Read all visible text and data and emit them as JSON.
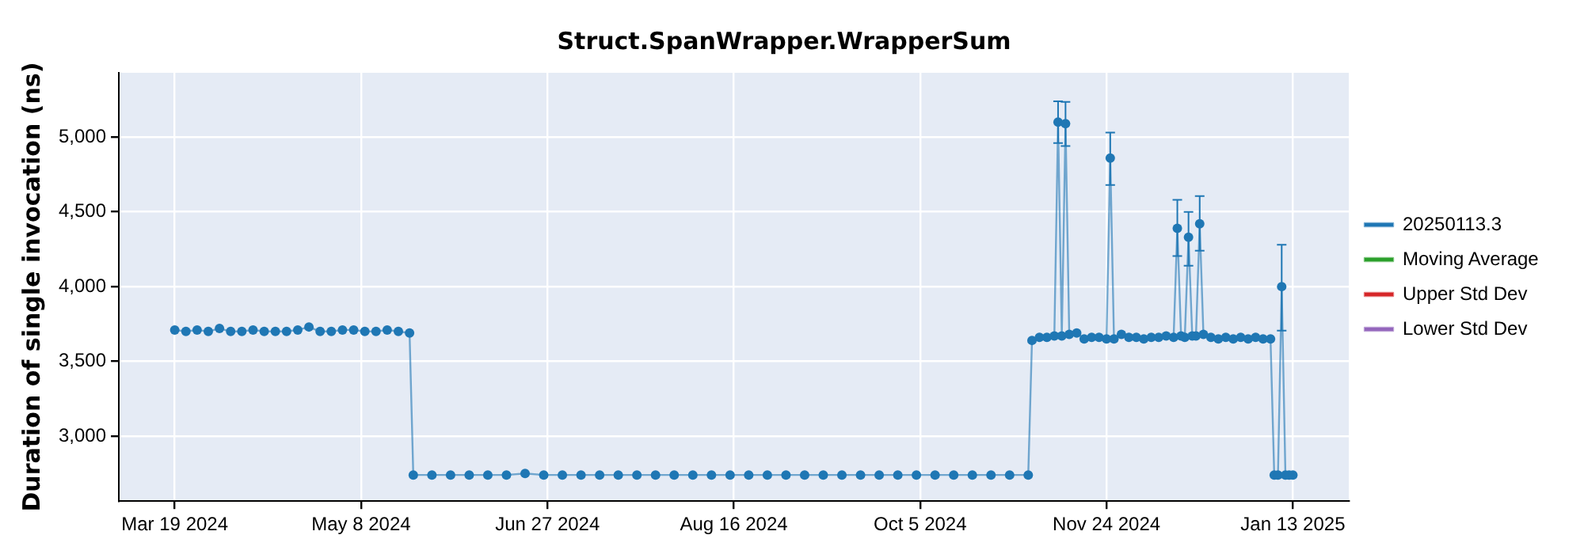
{
  "chart_data": {
    "type": "line",
    "title": "Struct.SpanWrapper.WrapperSum",
    "ylabel": "Duration of single invocation (ns)",
    "xlim": [
      "2024-03-04",
      "2025-01-28"
    ],
    "xticks": [
      {
        "value": "2024-03-19",
        "label": "Mar 19 2024"
      },
      {
        "value": "2024-05-08",
        "label": "May 8 2024"
      },
      {
        "value": "2024-06-27",
        "label": "Jun 27 2024"
      },
      {
        "value": "2024-08-16",
        "label": "Aug 16 2024"
      },
      {
        "value": "2024-10-05",
        "label": "Oct 5 2024"
      },
      {
        "value": "2024-11-24",
        "label": "Nov 24 2024"
      },
      {
        "value": "2025-01-13",
        "label": "Jan 13 2025"
      }
    ],
    "ylim": [
      2565,
      5430
    ],
    "yticks": [
      {
        "value": 3000,
        "label": "3,000"
      },
      {
        "value": 3500,
        "label": "3,500"
      },
      {
        "value": 4000,
        "label": "4,000"
      },
      {
        "value": 4500,
        "label": "4,500"
      },
      {
        "value": 5000,
        "label": "5,000"
      }
    ],
    "grid": true,
    "legend": "right",
    "marker": "circle",
    "line_style": "solid",
    "series": [
      {
        "name": "20250113.3",
        "color": "#1f77b4",
        "x": [
          "2024-03-19",
          "2024-03-22",
          "2024-03-25",
          "2024-03-28",
          "2024-03-31",
          "2024-04-03",
          "2024-04-06",
          "2024-04-09",
          "2024-04-12",
          "2024-04-15",
          "2024-04-18",
          "2024-04-21",
          "2024-04-24",
          "2024-04-27",
          "2024-04-30",
          "2024-05-03",
          "2024-05-06",
          "2024-05-09",
          "2024-05-12",
          "2024-05-15",
          "2024-05-18",
          "2024-05-21",
          "2024-05-22",
          "2024-05-27",
          "2024-06-01",
          "2024-06-06",
          "2024-06-11",
          "2024-06-16",
          "2024-06-21",
          "2024-06-26",
          "2024-07-01",
          "2024-07-06",
          "2024-07-11",
          "2024-07-16",
          "2024-07-21",
          "2024-07-26",
          "2024-07-31",
          "2024-08-05",
          "2024-08-10",
          "2024-08-15",
          "2024-08-20",
          "2024-08-25",
          "2024-08-30",
          "2024-09-04",
          "2024-09-09",
          "2024-09-14",
          "2024-09-19",
          "2024-09-24",
          "2024-09-29",
          "2024-10-04",
          "2024-10-09",
          "2024-10-14",
          "2024-10-19",
          "2024-10-24",
          "2024-10-29",
          "2024-11-03",
          "2024-11-04",
          "2024-11-06",
          "2024-11-08",
          "2024-11-10",
          "2024-11-11",
          "2024-11-12",
          "2024-11-13",
          "2024-11-14",
          "2024-11-16",
          "2024-11-18",
          "2024-11-20",
          "2024-11-22",
          "2024-11-24",
          "2024-11-25",
          "2024-11-26",
          "2024-11-28",
          "2024-11-30",
          "2024-12-02",
          "2024-12-04",
          "2024-12-06",
          "2024-12-08",
          "2024-12-10",
          "2024-12-12",
          "2024-12-13",
          "2024-12-14",
          "2024-12-15",
          "2024-12-16",
          "2024-12-17",
          "2024-12-18",
          "2024-12-19",
          "2024-12-20",
          "2024-12-22",
          "2024-12-24",
          "2024-12-26",
          "2024-12-28",
          "2024-12-30",
          "2025-01-01",
          "2025-01-03",
          "2025-01-05",
          "2025-01-07",
          "2025-01-08",
          "2025-01-09",
          "2025-01-10",
          "2025-01-11",
          "2025-01-12",
          "2025-01-13"
        ],
        "values": [
          3710,
          3700,
          3710,
          3700,
          3720,
          3700,
          3700,
          3710,
          3700,
          3700,
          3700,
          3710,
          3730,
          3700,
          3700,
          3710,
          3710,
          3700,
          3700,
          3710,
          3700,
          3690,
          2740,
          2740,
          2740,
          2740,
          2740,
          2740,
          2750,
          2740,
          2740,
          2740,
          2740,
          2740,
          2740,
          2740,
          2740,
          2740,
          2740,
          2740,
          2740,
          2740,
          2740,
          2740,
          2740,
          2740,
          2740,
          2740,
          2740,
          2740,
          2740,
          2740,
          2740,
          2740,
          2740,
          2740,
          3640,
          3660,
          3660,
          3670,
          5100,
          3670,
          5090,
          3680,
          3690,
          3650,
          3660,
          3660,
          3650,
          4860,
          3650,
          3680,
          3660,
          3660,
          3650,
          3660,
          3660,
          3670,
          3660,
          4390,
          3670,
          3660,
          4330,
          3670,
          3670,
          4420,
          3680,
          3660,
          3650,
          3660,
          3650,
          3660,
          3650,
          3660,
          3650,
          3650,
          2740,
          2740,
          4000,
          2740,
          2740,
          2740
        ],
        "errors": [
          null,
          null,
          null,
          null,
          null,
          null,
          null,
          null,
          null,
          null,
          null,
          null,
          null,
          null,
          null,
          null,
          null,
          null,
          null,
          null,
          null,
          null,
          null,
          null,
          null,
          null,
          null,
          null,
          null,
          null,
          null,
          null,
          null,
          null,
          null,
          null,
          null,
          null,
          null,
          null,
          null,
          null,
          null,
          null,
          null,
          null,
          null,
          null,
          null,
          null,
          null,
          null,
          null,
          null,
          null,
          null,
          null,
          null,
          null,
          null,
          [
            4960,
            5240
          ],
          null,
          [
            4940,
            5235
          ],
          null,
          null,
          null,
          null,
          null,
          null,
          [
            4680,
            5030
          ],
          null,
          null,
          null,
          null,
          null,
          null,
          null,
          null,
          null,
          [
            4205,
            4580
          ],
          null,
          null,
          [
            4140,
            4500
          ],
          null,
          null,
          [
            4240,
            4605
          ],
          null,
          null,
          null,
          null,
          null,
          null,
          null,
          null,
          null,
          null,
          null,
          null,
          [
            3705,
            4280
          ],
          null,
          null,
          null
        ]
      },
      {
        "name": "Moving Average",
        "color": "#2ca02c"
      },
      {
        "name": "Upper Std Dev",
        "color": "#d62728"
      },
      {
        "name": "Lower Std Dev",
        "color": "#9467bd"
      }
    ]
  }
}
